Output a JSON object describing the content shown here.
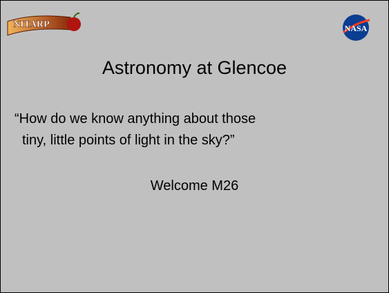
{
  "logos": {
    "left": "NITARP",
    "right": "NASA"
  },
  "slide": {
    "title": "Astronomy at Glencoe",
    "quote_lines": [
      "“How do we know anything about those",
      "tiny, little points of light in the sky?”"
    ],
    "welcome": "Welcome M26"
  }
}
